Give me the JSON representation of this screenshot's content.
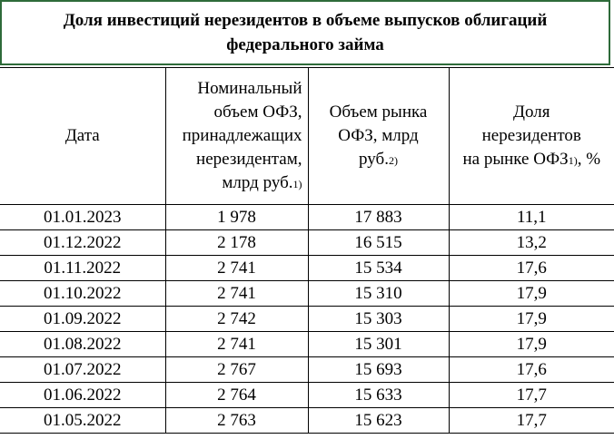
{
  "title": "Доля инвестиций нерезидентов в объеме выпусков облигаций федерального займа",
  "headers": {
    "date": "Дата",
    "nominal_line1": "Номинальный",
    "nominal_line2": "объем ОФЗ,",
    "nominal_line3": "принадлежащих",
    "nominal_line4": "нерезидентам,",
    "nominal_line5": "млрд руб.",
    "nominal_note": "1)",
    "market_line1": "Объем рынка",
    "market_line2": "ОФЗ, млрд",
    "market_line3": "руб.",
    "market_note": "2)",
    "share_line1": "Доля",
    "share_line2": "нерезидентов",
    "share_line3": "на рынке ОФЗ",
    "share_note": "1)",
    "share_suffix": ", %"
  },
  "rows": [
    {
      "date": "01.01.2023",
      "nominal": "1 978",
      "market": "17 883",
      "share": "11,1"
    },
    {
      "date": "01.12.2022",
      "nominal": "2 178",
      "market": "16 515",
      "share": "13,2"
    },
    {
      "date": "01.11.2022",
      "nominal": "2 741",
      "market": "15 534",
      "share": "17,6"
    },
    {
      "date": "01.10.2022",
      "nominal": "2 741",
      "market": "15 310",
      "share": "17,9"
    },
    {
      "date": "01.09.2022",
      "nominal": "2 742",
      "market": "15 303",
      "share": "17,9"
    },
    {
      "date": "01.08.2022",
      "nominal": "2 741",
      "market": "15 301",
      "share": "17,9"
    },
    {
      "date": "01.07.2022",
      "nominal": "2 767",
      "market": "15 693",
      "share": "17,6"
    },
    {
      "date": "01.06.2022",
      "nominal": "2 764",
      "market": "15 633",
      "share": "17,7"
    },
    {
      "date": "01.05.2022",
      "nominal": "2 763",
      "market": "15 623",
      "share": "17,7"
    }
  ]
}
